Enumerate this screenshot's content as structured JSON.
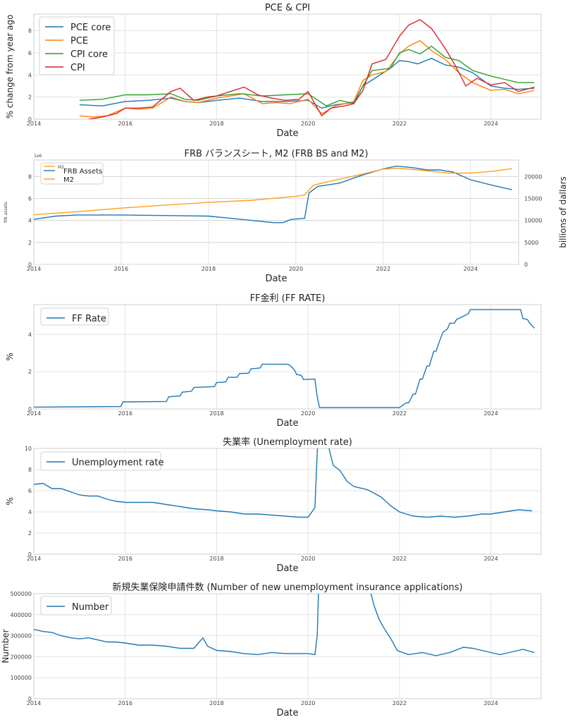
{
  "chart_data": [
    {
      "type": "line",
      "title": "PCE & CPI",
      "xlabel": "Date",
      "ylabel": "% change from year ago",
      "xlim": [
        2014,
        2025.1
      ],
      "ylim": [
        0,
        9.5
      ],
      "xticks": [
        "2014",
        "2016",
        "2018",
        "2020",
        "2022",
        "2024"
      ],
      "yticks": [
        "0",
        "2",
        "4",
        "6",
        "8"
      ],
      "legend": "top-left",
      "series": [
        {
          "name": "PCE core",
          "color": "#1f77b4",
          "x": [
            2015.0,
            2015.5,
            2016.0,
            2016.5,
            2017.0,
            2017.3,
            2017.6,
            2018.0,
            2018.5,
            2019.0,
            2019.5,
            2020.0,
            2020.3,
            2020.6,
            2021.0,
            2021.2,
            2021.5,
            2021.8,
            2022.0,
            2022.2,
            2022.4,
            2022.7,
            2023.0,
            2023.3,
            2023.6,
            2024.0,
            2024.3,
            2024.6,
            2024.95
          ],
          "y": [
            1.3,
            1.2,
            1.6,
            1.7,
            1.9,
            1.6,
            1.5,
            1.7,
            1.9,
            1.6,
            1.6,
            1.7,
            1.0,
            1.3,
            1.5,
            3.0,
            3.8,
            4.6,
            5.3,
            5.2,
            5.0,
            5.5,
            4.9,
            4.7,
            4.2,
            3.0,
            2.8,
            2.7,
            2.8
          ]
        },
        {
          "name": "PCE",
          "color": "#ff7f0e",
          "x": [
            2015.0,
            2015.3,
            2015.6,
            2016.0,
            2016.3,
            2016.6,
            2017.0,
            2017.3,
            2017.6,
            2018.0,
            2018.3,
            2018.6,
            2019.0,
            2019.3,
            2019.6,
            2020.0,
            2020.3,
            2020.6,
            2021.0,
            2021.2,
            2021.4,
            2021.7,
            2022.0,
            2022.2,
            2022.45,
            2022.7,
            2023.0,
            2023.3,
            2023.6,
            2024.0,
            2024.3,
            2024.6,
            2024.95
          ],
          "y": [
            0.3,
            0.2,
            0.3,
            1.0,
            0.9,
            1.0,
            2.0,
            1.6,
            1.5,
            1.9,
            2.1,
            2.3,
            1.4,
            1.5,
            1.4,
            1.8,
            0.5,
            1.2,
            1.6,
            3.5,
            4.0,
            4.3,
            5.9,
            6.6,
            7.1,
            6.2,
            5.4,
            4.2,
            3.3,
            2.6,
            2.7,
            2.3,
            2.6
          ]
        },
        {
          "name": "CPI core",
          "color": "#2ca02c",
          "x": [
            2015.0,
            2015.5,
            2016.0,
            2016.5,
            2017.0,
            2017.3,
            2017.6,
            2018.0,
            2018.5,
            2019.0,
            2019.5,
            2020.0,
            2020.4,
            2020.7,
            2021.0,
            2021.2,
            2021.4,
            2021.8,
            2022.0,
            2022.2,
            2022.45,
            2022.7,
            2023.0,
            2023.3,
            2023.6,
            2024.0,
            2024.3,
            2024.6,
            2024.95
          ],
          "y": [
            1.7,
            1.8,
            2.2,
            2.2,
            2.3,
            1.8,
            1.7,
            2.1,
            2.3,
            2.1,
            2.2,
            2.3,
            1.2,
            1.7,
            1.4,
            3.0,
            4.4,
            4.6,
            6.0,
            6.3,
            5.9,
            6.6,
            5.6,
            5.3,
            4.4,
            3.9,
            3.6,
            3.3,
            3.3
          ]
        },
        {
          "name": "CPI",
          "color": "#d62728",
          "x": [
            2015.2,
            2015.5,
            2015.8,
            2016.0,
            2016.3,
            2016.6,
            2017.0,
            2017.2,
            2017.5,
            2017.8,
            2018.0,
            2018.3,
            2018.6,
            2018.9,
            2019.2,
            2019.5,
            2019.8,
            2020.0,
            2020.3,
            2020.5,
            2020.8,
            2021.0,
            2021.2,
            2021.4,
            2021.7,
            2022.0,
            2022.2,
            2022.45,
            2022.7,
            2023.0,
            2023.2,
            2023.45,
            2023.7,
            2024.0,
            2024.3,
            2024.6,
            2024.95
          ],
          "y": [
            0.0,
            0.2,
            0.5,
            1.0,
            1.0,
            1.1,
            2.5,
            2.8,
            1.7,
            2.0,
            2.1,
            2.5,
            2.9,
            2.2,
            1.9,
            1.7,
            1.8,
            2.5,
            0.3,
            1.0,
            1.2,
            1.4,
            2.6,
            5.0,
            5.4,
            7.5,
            8.5,
            9.0,
            8.2,
            6.4,
            5.0,
            3.0,
            3.7,
            3.1,
            3.3,
            2.5,
            2.9
          ]
        }
      ]
    },
    {
      "type": "line",
      "title": "FRB バランスシート, M2 (FRB BS and M2)",
      "xlabel": "Date",
      "ylabel": "frb assets",
      "ylabel2": "billions of dallars",
      "offset_label": "1e6",
      "xlim": [
        2014,
        2025.1
      ],
      "ylim": [
        0,
        9.5
      ],
      "ylim2": [
        0,
        23750
      ],
      "xticks": [
        "2014",
        "2016",
        "2018",
        "2020",
        "2022",
        "2024"
      ],
      "yticks": [
        "0",
        "2",
        "4",
        "6",
        "8"
      ],
      "yticks2": [
        "0",
        "5000",
        "10000",
        "15000",
        "20000"
      ],
      "legend": "top-left",
      "series": [
        {
          "name": "FRB Assets",
          "axis": "left",
          "color": "#1f77b4",
          "x": [
            2014.0,
            2014.5,
            2015.0,
            2016.0,
            2017.0,
            2018.0,
            2018.5,
            2019.0,
            2019.5,
            2019.7,
            2019.9,
            2020.2,
            2020.3,
            2020.5,
            2021.0,
            2021.5,
            2022.0,
            2022.3,
            2022.7,
            2023.0,
            2023.3,
            2023.6,
            2024.0,
            2024.5,
            2024.95
          ],
          "y": [
            4.1,
            4.4,
            4.5,
            4.5,
            4.45,
            4.4,
            4.2,
            4.0,
            3.8,
            3.8,
            4.1,
            4.2,
            6.5,
            7.1,
            7.4,
            8.1,
            8.7,
            8.95,
            8.8,
            8.6,
            8.6,
            8.4,
            7.7,
            7.2,
            6.8
          ]
        },
        {
          "name": "M2",
          "axis": "right",
          "color": "#ff9e1b",
          "x": [
            2014.0,
            2015.0,
            2016.0,
            2017.0,
            2018.0,
            2019.0,
            2020.0,
            2020.2,
            2020.4,
            2020.6,
            2021.0,
            2021.5,
            2022.0,
            2022.3,
            2022.7,
            2023.0,
            2023.5,
            2024.0,
            2024.5,
            2024.95
          ],
          "y": [
            11300,
            12000,
            12800,
            13500,
            14100,
            14600,
            15500,
            15800,
            18000,
            18500,
            19400,
            20500,
            21700,
            21900,
            21600,
            21300,
            20800,
            20800,
            21200,
            21800
          ]
        }
      ],
      "legend_entries": [
        "M2",
        "FRB Assets",
        "M2"
      ]
    },
    {
      "type": "line",
      "title": "FF金利 (FF RATE)",
      "xlabel": "Date",
      "ylabel": "%",
      "xlim": [
        2014,
        2025.1
      ],
      "ylim": [
        0,
        5.6
      ],
      "xticks": [
        "2014",
        "2016",
        "2018",
        "2020",
        "2022",
        "2024"
      ],
      "yticks": [
        "0",
        "2",
        "4"
      ],
      "legend": "top-left",
      "series": [
        {
          "name": "FF Rate",
          "color": "#1f77b4",
          "x": [
            2014.0,
            2015.9,
            2015.95,
            2016.9,
            2016.95,
            2017.2,
            2017.25,
            2017.45,
            2017.5,
            2017.95,
            2018.0,
            2018.2,
            2018.25,
            2018.45,
            2018.5,
            2018.7,
            2018.75,
            2018.95,
            2019.0,
            2019.55,
            2019.6,
            2019.7,
            2019.75,
            2019.85,
            2019.9,
            2020.15,
            2020.2,
            2020.25,
            2021.0,
            2022.0,
            2022.15,
            2022.2,
            2022.3,
            2022.35,
            2022.45,
            2022.5,
            2022.6,
            2022.65,
            2022.75,
            2022.8,
            2022.9,
            2022.95,
            2023.05,
            2023.1,
            2023.2,
            2023.25,
            2023.5,
            2023.55,
            2024.65,
            2024.7,
            2024.8,
            2024.85,
            2024.9,
            2024.95
          ],
          "y": [
            0.1,
            0.13,
            0.38,
            0.4,
            0.65,
            0.7,
            0.9,
            0.95,
            1.15,
            1.2,
            1.42,
            1.45,
            1.7,
            1.7,
            1.9,
            1.92,
            2.15,
            2.2,
            2.4,
            2.4,
            2.35,
            2.1,
            1.85,
            1.8,
            1.58,
            1.6,
            0.65,
            0.08,
            0.08,
            0.08,
            0.33,
            0.33,
            0.8,
            0.8,
            1.6,
            1.6,
            2.3,
            2.3,
            3.1,
            3.1,
            3.8,
            4.1,
            4.3,
            4.6,
            4.6,
            4.8,
            5.1,
            5.33,
            5.33,
            4.85,
            4.8,
            4.6,
            4.48,
            4.33
          ]
        }
      ]
    },
    {
      "type": "line",
      "title": "失業率 (Unemployment rate)",
      "xlabel": "Date",
      "ylabel": "%",
      "xlim": [
        2014,
        2025.1
      ],
      "ylim": [
        0,
        10
      ],
      "xticks": [
        "2014",
        "2016",
        "2018",
        "2020",
        "2022",
        "2024"
      ],
      "yticks": [
        "0",
        "2",
        "4",
        "6",
        "8",
        "10"
      ],
      "legend": "top-left",
      "series": [
        {
          "name": "Unemployment rate",
          "color": "#1f77b4",
          "x": [
            2014.0,
            2014.2,
            2014.4,
            2014.6,
            2014.8,
            2015.0,
            2015.2,
            2015.4,
            2015.6,
            2015.8,
            2016.0,
            2016.3,
            2016.6,
            2016.9,
            2017.2,
            2017.5,
            2017.8,
            2018.0,
            2018.3,
            2018.6,
            2018.9,
            2019.2,
            2019.5,
            2019.8,
            2020.0,
            2020.15,
            2020.25,
            2020.4,
            2020.55,
            2020.7,
            2020.85,
            2021.0,
            2021.3,
            2021.6,
            2021.8,
            2022.0,
            2022.3,
            2022.6,
            2022.9,
            2023.2,
            2023.5,
            2023.8,
            2024.0,
            2024.3,
            2024.6,
            2024.9
          ],
          "y": [
            6.6,
            6.7,
            6.2,
            6.2,
            5.9,
            5.6,
            5.5,
            5.5,
            5.2,
            5.0,
            4.9,
            4.9,
            4.9,
            4.7,
            4.5,
            4.3,
            4.2,
            4.1,
            4.0,
            3.8,
            3.8,
            3.7,
            3.6,
            3.5,
            3.5,
            4.4,
            14.7,
            11.0,
            8.4,
            7.9,
            6.9,
            6.4,
            6.1,
            5.4,
            4.6,
            4.0,
            3.6,
            3.5,
            3.6,
            3.5,
            3.6,
            3.8,
            3.8,
            4.0,
            4.2,
            4.1
          ]
        }
      ]
    },
    {
      "type": "line",
      "title": "新規失業保険申請件数 (Number of new unemployment insurance applications)",
      "xlabel": "Date",
      "ylabel": "Number",
      "xlim": [
        2014,
        2025.1
      ],
      "ylim": [
        0,
        500000
      ],
      "xticks": [
        "2014",
        "2016",
        "2018",
        "2020",
        "2022",
        "2024"
      ],
      "yticks": [
        "0",
        "100000",
        "200000",
        "300000",
        "400000",
        "500000"
      ],
      "legend": "top-left",
      "series": [
        {
          "name": "Number",
          "color": "#1f77b4",
          "x": [
            2014.0,
            2014.2,
            2014.4,
            2014.6,
            2014.8,
            2015.0,
            2015.2,
            2015.4,
            2015.6,
            2015.8,
            2016.0,
            2016.3,
            2016.6,
            2016.9,
            2017.2,
            2017.5,
            2017.7,
            2017.8,
            2018.0,
            2018.3,
            2018.6,
            2018.9,
            2019.2,
            2019.5,
            2019.8,
            2020.0,
            2020.15,
            2020.2,
            2020.23,
            2021.35,
            2021.45,
            2021.55,
            2021.65,
            2021.8,
            2021.95,
            2022.2,
            2022.5,
            2022.8,
            2023.1,
            2023.4,
            2023.6,
            2023.9,
            2024.2,
            2024.5,
            2024.7,
            2024.95
          ],
          "y": [
            330000,
            320000,
            315000,
            300000,
            290000,
            285000,
            290000,
            280000,
            270000,
            270000,
            265000,
            255000,
            255000,
            250000,
            240000,
            240000,
            290000,
            250000,
            230000,
            225000,
            215000,
            210000,
            220000,
            215000,
            215000,
            215000,
            210000,
            300000,
            520000,
            520000,
            440000,
            380000,
            340000,
            290000,
            230000,
            210000,
            220000,
            205000,
            220000,
            245000,
            240000,
            225000,
            210000,
            225000,
            235000,
            220000
          ]
        }
      ]
    }
  ]
}
